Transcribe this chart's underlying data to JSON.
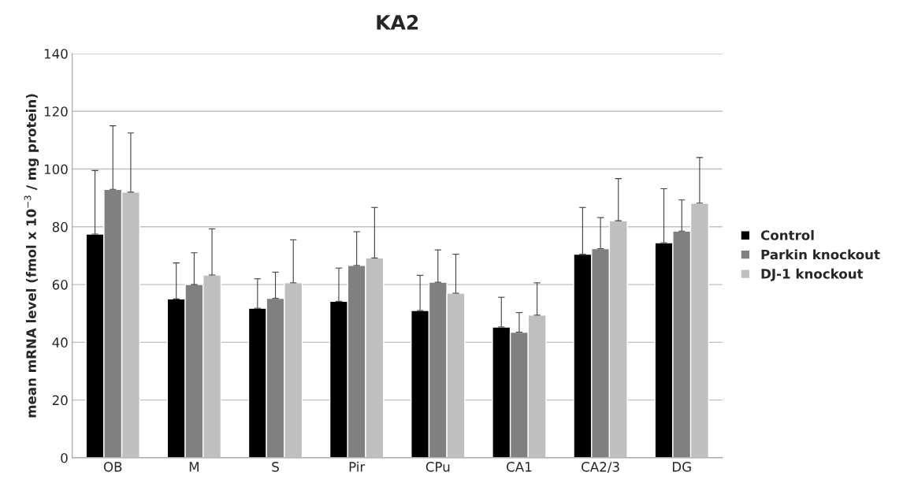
{
  "chart_data": {
    "type": "bar",
    "title": "KA2",
    "ylabel": "mean mRNA level (fmol x 10$^{−3}$ / mg protein)",
    "categories": [
      "OB",
      "M",
      "S",
      "Pir",
      "CPu",
      "CA1",
      "CA2/3",
      "DG"
    ],
    "series": [
      {
        "name": "Control",
        "color": "#000000",
        "values": [
          77.5,
          55,
          51.8,
          54.2,
          51,
          45.3,
          70.5,
          74.5
        ],
        "errors": [
          [
            77.5,
            99.5
          ],
          [
            55,
            67.5
          ],
          [
            51.8,
            62
          ],
          [
            54.2,
            65.7
          ],
          [
            51,
            63.2
          ],
          [
            45.3,
            55.6
          ],
          [
            70.5,
            86.7
          ],
          [
            74.5,
            93.2
          ]
        ]
      },
      {
        "name": "Parkin knockout",
        "color": "#808080",
        "values": [
          93,
          60,
          55.2,
          66.6,
          60.8,
          43.5,
          72.4,
          78.5
        ],
        "errors": [
          [
            93,
            115
          ],
          [
            60,
            71
          ],
          [
            55.2,
            64.3
          ],
          [
            66.6,
            78.3
          ],
          [
            60.8,
            72
          ],
          [
            43.5,
            50.3
          ],
          [
            72.4,
            83.2
          ],
          [
            78.5,
            89.3
          ]
        ]
      },
      {
        "name": "DJ-1 knockout",
        "color": "#bfbfbf",
        "values": [
          92,
          63.3,
          60.6,
          69.2,
          57,
          49.4,
          82.1,
          88.2
        ],
        "errors": [
          [
            92,
            112.5
          ],
          [
            63.3,
            79.3
          ],
          [
            60.6,
            75.5
          ],
          [
            69.2,
            86.7
          ],
          [
            57,
            70.5
          ],
          [
            49.4,
            60.6
          ],
          [
            82.1,
            96.7
          ],
          [
            88.2,
            104
          ]
        ]
      }
    ],
    "ylim": [
      0,
      140
    ],
    "yticks": [
      0,
      20,
      40,
      60,
      80,
      100,
      120,
      140
    ],
    "grid": "y",
    "legend": "right"
  }
}
